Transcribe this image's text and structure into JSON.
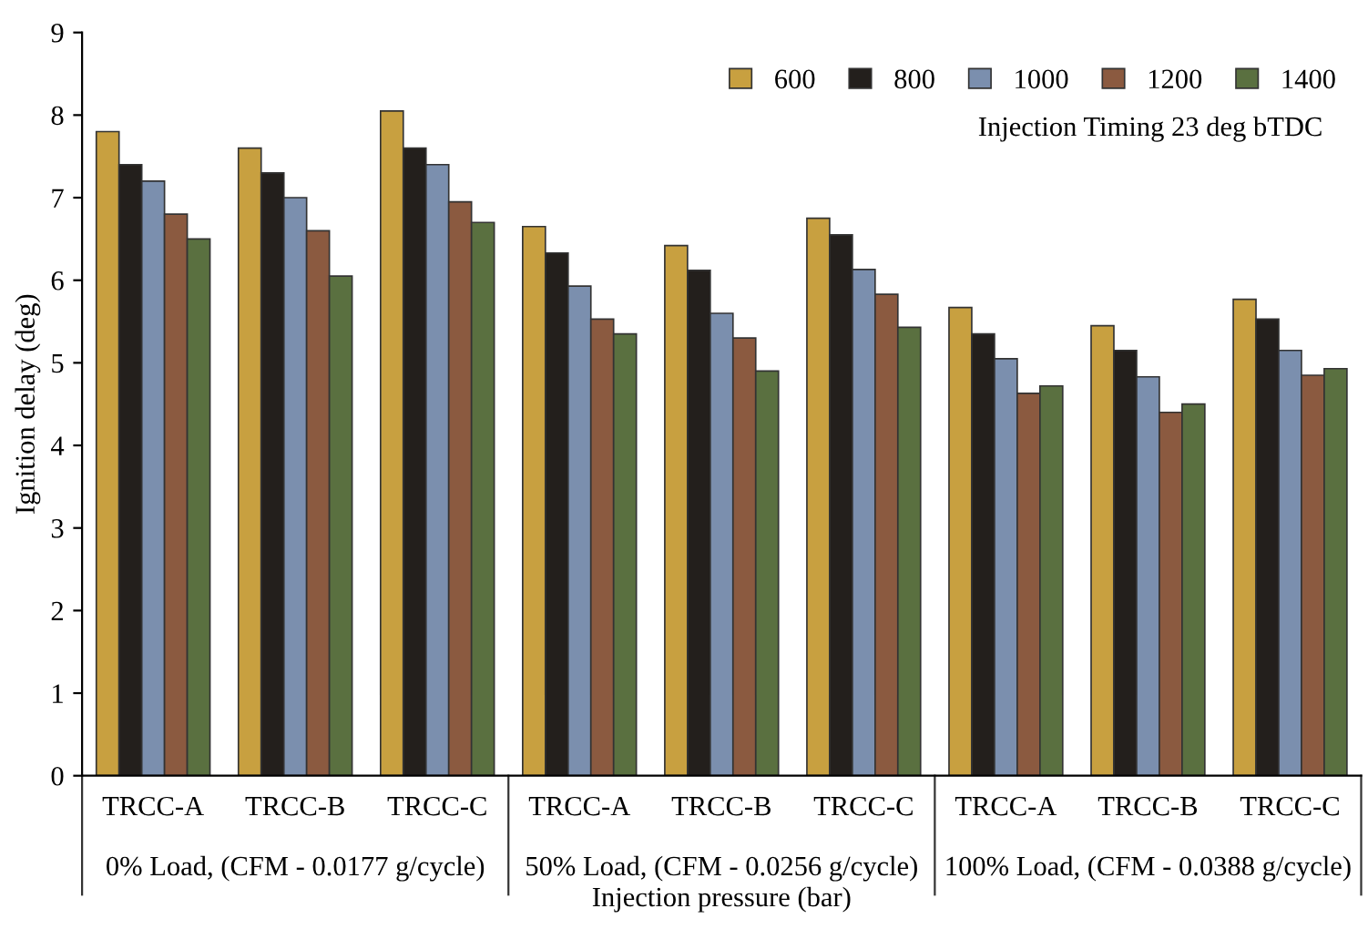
{
  "chart_data": {
    "type": "bar",
    "xlabel": "Injection pressure (bar)",
    "ylabel": "Ignition delay (deg)",
    "categories": [
      "TRCC-A",
      "TRCC-B",
      "TRCC-C",
      "TRCC-A",
      "TRCC-B",
      "TRCC-C",
      "TRCC-A",
      "TRCC-B",
      "TRCC-C"
    ],
    "series": [
      {
        "name": "600",
        "color": "#c8a040",
        "values": [
          7.8,
          7.6,
          8.05,
          6.65,
          6.42,
          6.75,
          5.67,
          5.45,
          5.77
        ]
      },
      {
        "name": "800",
        "color": "#231f1c",
        "values": [
          7.4,
          7.3,
          7.6,
          6.33,
          6.12,
          6.55,
          5.35,
          5.15,
          5.53
        ]
      },
      {
        "name": "1000",
        "color": "#7b8fae",
        "values": [
          7.2,
          7.0,
          7.4,
          5.93,
          5.6,
          6.13,
          5.05,
          4.83,
          5.15
        ]
      },
      {
        "name": "1200",
        "color": "#8b5a40",
        "values": [
          6.8,
          6.6,
          6.95,
          5.53,
          5.3,
          5.83,
          4.63,
          4.4,
          4.85
        ]
      },
      {
        "name": "1400",
        "color": "#5a7040",
        "values": [
          6.5,
          6.05,
          6.7,
          5.35,
          4.9,
          5.43,
          4.72,
          4.5,
          4.93
        ]
      }
    ],
    "ylim": [
      0,
      9
    ],
    "yticks": [
      0,
      1,
      2,
      3,
      4,
      5,
      6,
      7,
      8,
      9
    ],
    "grid": false,
    "legend": "top right",
    "annotations": [
      "Injection Timing 23 deg bTDC",
      "0% Load, (CFM - 0.0177 g/cycle)",
      "50% Load, (CFM - 0.0256 g/cycle)",
      "100% Load, (CFM - 0.0388 g/cycle)"
    ]
  }
}
